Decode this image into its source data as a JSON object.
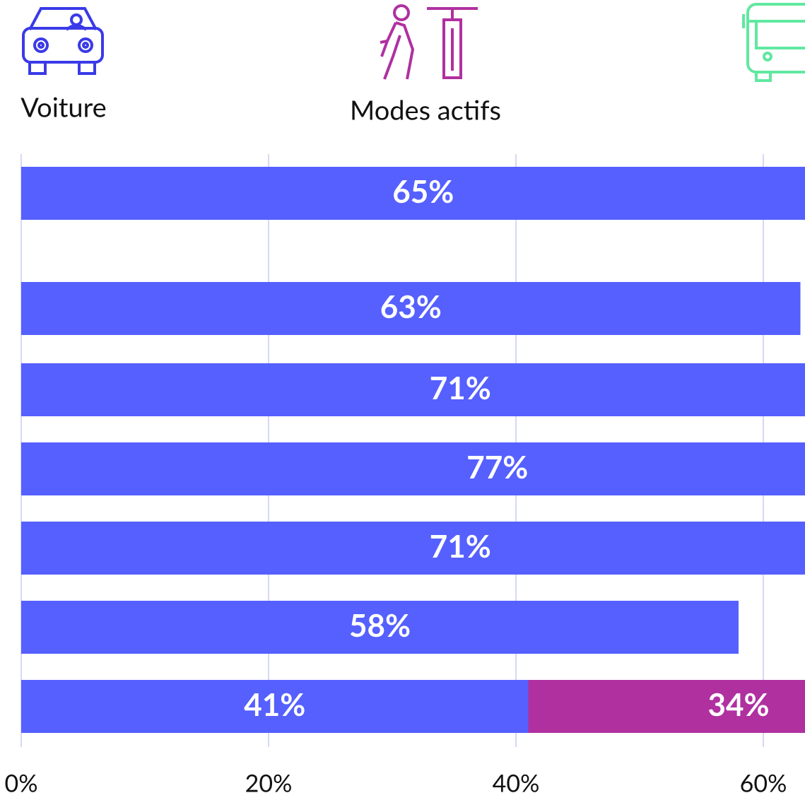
{
  "chart_data": {
    "type": "bar",
    "orientation": "horizontal",
    "stacked": true,
    "categories": [
      null,
      null,
      null,
      null,
      null,
      null,
      null
    ],
    "series": [
      {
        "name": "Voiture",
        "color": "#5560ff",
        "values": [
          65,
          63,
          71,
          77,
          71,
          58,
          41
        ],
        "value_labels": [
          "65%",
          "63%",
          "71%",
          "77%",
          "71%",
          "58%",
          "41%"
        ]
      },
      {
        "name": "Modes actifs",
        "color": "#b030a0",
        "values": [
          null,
          null,
          null,
          null,
          null,
          null,
          34
        ],
        "value_labels": [
          null,
          null,
          null,
          null,
          null,
          null,
          "34%"
        ]
      }
    ],
    "xlim": [
      0,
      100
    ],
    "xticks": [
      {
        "value": 0,
        "label": "0%"
      },
      {
        "value": 20,
        "label": "20%"
      },
      {
        "value": 40,
        "label": "40%"
      },
      {
        "value": 60,
        "label": "60%"
      }
    ],
    "grid": true
  }
}
